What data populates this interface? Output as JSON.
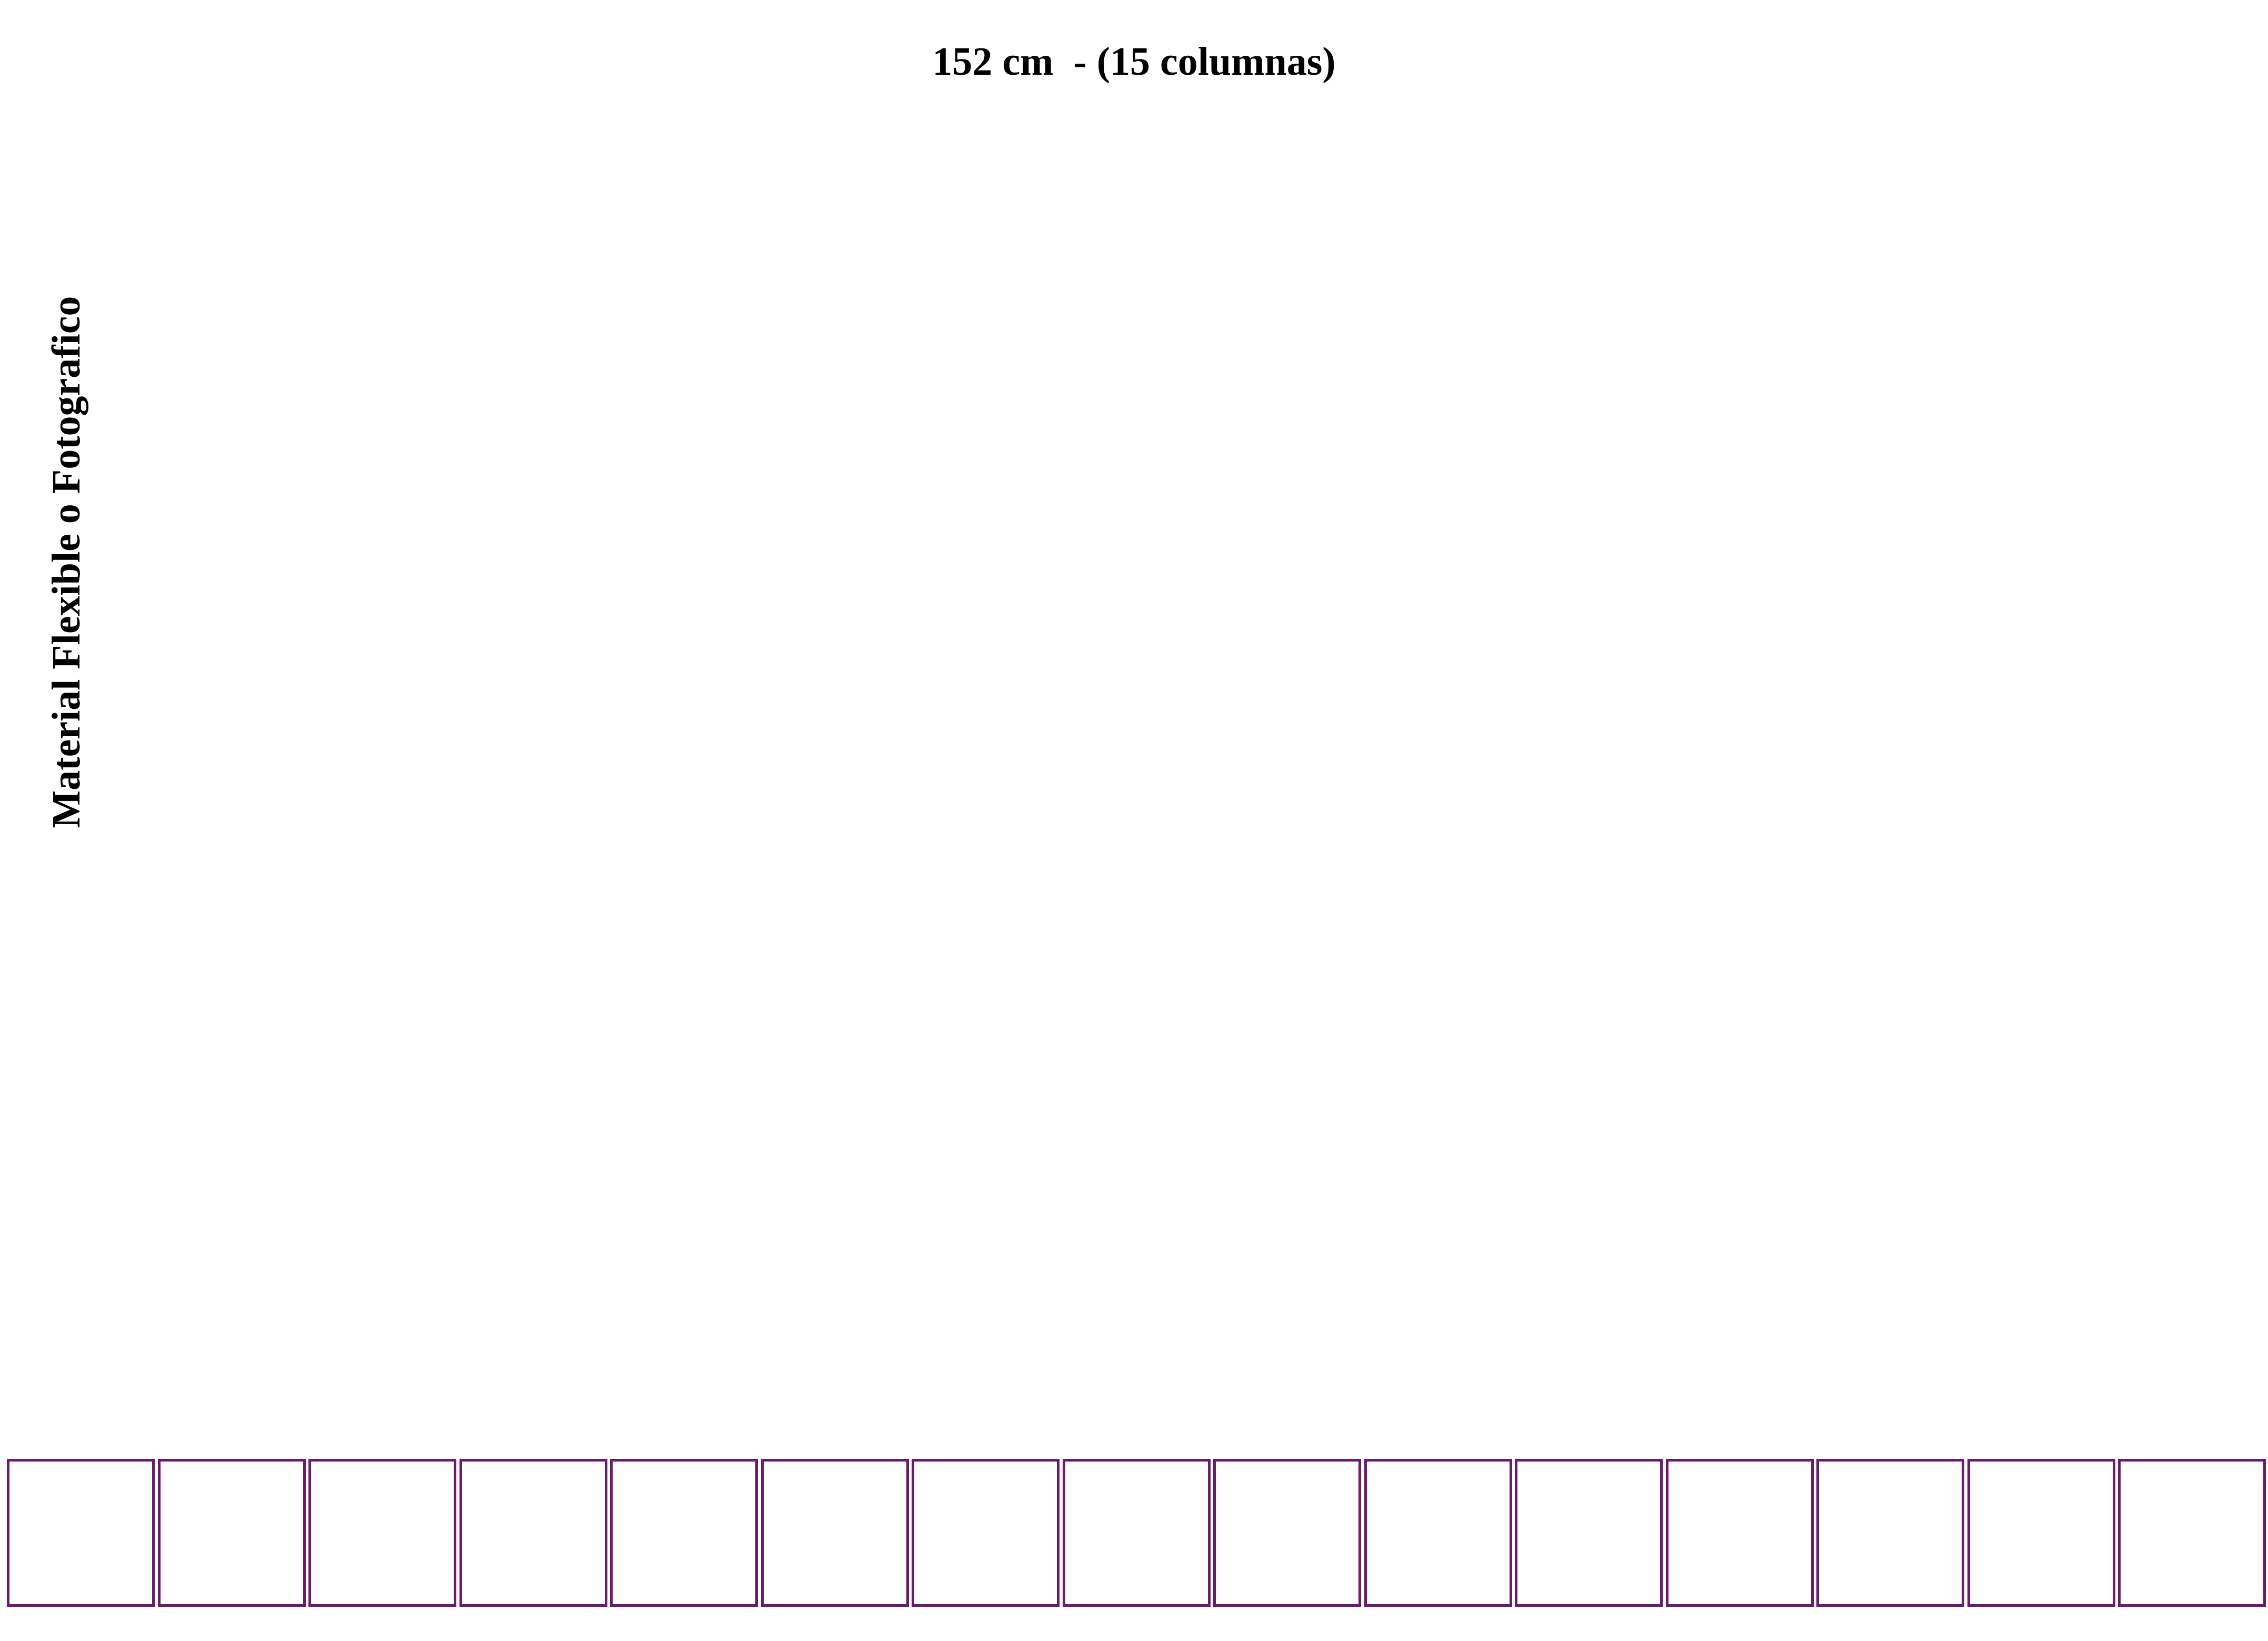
{
  "title": "152 cm  - (15 columnas)",
  "side_label": "Material Flexible o Fotografico",
  "columns": {
    "count": 15,
    "border_color": "#6a1b6e"
  }
}
